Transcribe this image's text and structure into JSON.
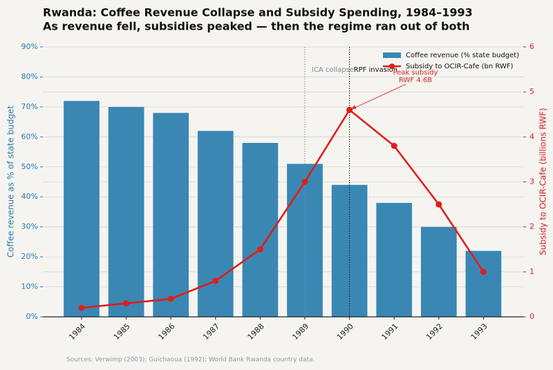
{
  "chart_data": {
    "type": "bar",
    "title": "Rwanda: Coffee Revenue Collapse and Subsidy Spending, 1984–1993",
    "subtitle": "As revenue fell, subsidies peaked — then the regime ran out of both",
    "categories": [
      "1984",
      "1985",
      "1986",
      "1987",
      "1988",
      "1989",
      "1990",
      "1991",
      "1992",
      "1993"
    ],
    "series": [
      {
        "name": "Coffee revenue (% state budget)",
        "type": "bar",
        "color": "#3a87b4",
        "values": [
          72,
          70,
          68,
          62,
          58,
          51,
          44,
          38,
          30,
          22
        ]
      },
      {
        "name": "Subsidy to OCIR-Cafe (bn RWF)",
        "type": "line",
        "axis": "y2",
        "color": "#dd1f1a",
        "values": [
          0.2,
          0.3,
          0.4,
          0.8,
          1.5,
          3.0,
          4.6,
          3.8,
          2.5,
          1.0
        ]
      }
    ],
    "ylabel": "Coffee revenue as % of state budget",
    "y2label": "Subsidy to OCIR-Cafe (billions RWF)",
    "ylim": [
      0,
      90
    ],
    "yticks": [
      {
        "value": 0,
        "label": "0%"
      },
      {
        "value": 10,
        "label": "10%"
      },
      {
        "value": 20,
        "label": "20%"
      },
      {
        "value": 30,
        "label": "30%"
      },
      {
        "value": 40,
        "label": "40%"
      },
      {
        "value": 50,
        "label": "50%"
      },
      {
        "value": 60,
        "label": "60%"
      },
      {
        "value": 70,
        "label": "70%"
      },
      {
        "value": 80,
        "label": "80%"
      },
      {
        "value": 90,
        "label": "90%"
      }
    ],
    "y2lim": [
      0,
      6
    ],
    "y2ticks": [
      0,
      1,
      2,
      3,
      4,
      5,
      6
    ],
    "grid": true,
    "legend": "upper right",
    "events": [
      {
        "category": "1989",
        "label": "ICA collapse",
        "color": "#7a8a99"
      },
      {
        "category": "1990",
        "label": "RPF invasion",
        "color": "#111111"
      }
    ],
    "annotation": {
      "lines": [
        "Peak subsidy",
        "RWF 4.6B"
      ],
      "category": "1990"
    },
    "source": "Sources: Verwimp (2003); Guichaoua (1992); World Bank Rwanda country data."
  }
}
